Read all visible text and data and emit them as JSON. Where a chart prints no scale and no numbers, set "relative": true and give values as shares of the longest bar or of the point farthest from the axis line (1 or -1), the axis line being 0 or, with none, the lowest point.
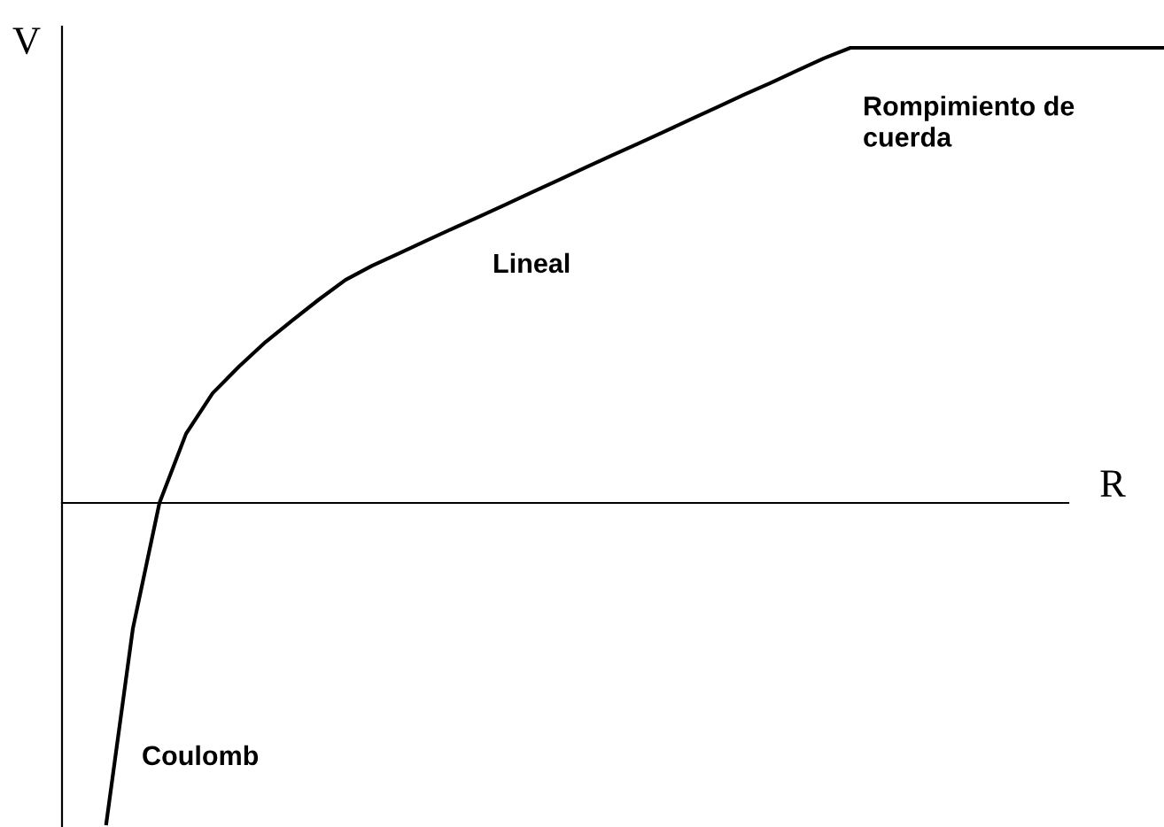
{
  "chart_data": {
    "type": "line",
    "relative": true,
    "xlabel": "R",
    "ylabel": "V",
    "color": "#000000",
    "categories": [
      null,
      null,
      null,
      null,
      null,
      null,
      null,
      null,
      null,
      null,
      null,
      null,
      null,
      null,
      null,
      null,
      null,
      null,
      null,
      null,
      null,
      null,
      null,
      null,
      null,
      null,
      null,
      null,
      null,
      null,
      null,
      null,
      null,
      null,
      null,
      null,
      null,
      null,
      null,
      null,
      null
    ],
    "values": [
      -0.704,
      -0.276,
      0,
      0.152,
      0.241,
      0.3,
      0.354,
      0.401,
      0.447,
      0.49,
      0.521,
      0.548,
      0.575,
      0.602,
      0.628,
      0.655,
      0.682,
      0.709,
      0.736,
      0.763,
      0.789,
      0.816,
      0.843,
      0.87,
      0.897,
      0.923,
      0.95,
      0.977,
      1,
      1,
      1,
      1,
      1,
      1,
      1,
      1,
      1,
      1,
      1,
      1,
      1
    ],
    "annotations": [
      "Lineal",
      "Coulomb",
      "Rompimiento de\ncuerda"
    ]
  }
}
